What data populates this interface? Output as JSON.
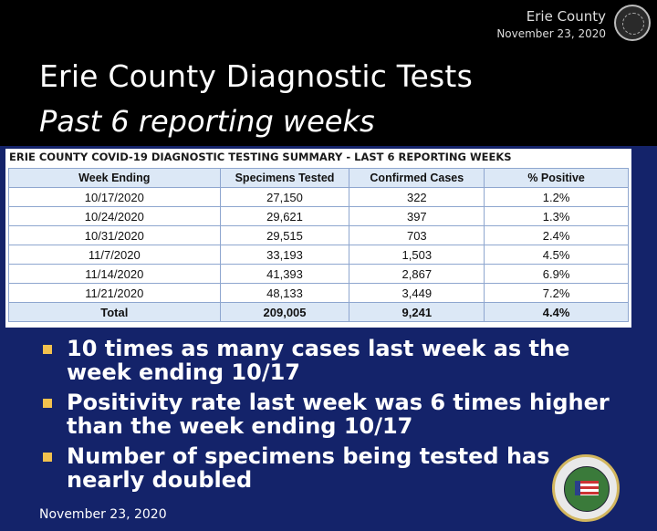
{
  "header": {
    "county": "Erie County",
    "date": "November 23, 2020"
  },
  "title": {
    "line1": "Erie County Diagnostic Tests",
    "line2": "Past 6 reporting weeks"
  },
  "table": {
    "title": "ERIE COUNTY COVID-19 DIAGNOSTIC TESTING SUMMARY - LAST 6 REPORTING WEEKS",
    "headers": [
      "Week Ending",
      "Specimens Tested",
      "Confirmed Cases",
      "% Positive"
    ],
    "rows": [
      [
        "10/17/2020",
        "27,150",
        "322",
        "1.2%"
      ],
      [
        "10/24/2020",
        "29,621",
        "397",
        "1.3%"
      ],
      [
        "10/31/2020",
        "29,515",
        "703",
        "2.4%"
      ],
      [
        "11/7/2020",
        "33,193",
        "1,503",
        "4.5%"
      ],
      [
        "11/14/2020",
        "41,393",
        "2,867",
        "6.9%"
      ],
      [
        "11/21/2020",
        "48,133",
        "3,449",
        "7.2%"
      ]
    ],
    "total": [
      "Total",
      "209,005",
      "9,241",
      "4.4%"
    ]
  },
  "bullets": [
    "10 times as many cases last week as the week ending 10/17",
    "Positivity rate last week was 6 times higher than the week ending 10/17",
    "Number of specimens being tested has nearly doubled"
  ],
  "footer": {
    "date": "November 23, 2020"
  },
  "colors": {
    "panel": "#14236a",
    "bullet": "#f2c14e",
    "header_fill": "#dce8f6"
  },
  "icons": {
    "top": "county-seal-icon",
    "bottom": "county-seal-icon"
  }
}
